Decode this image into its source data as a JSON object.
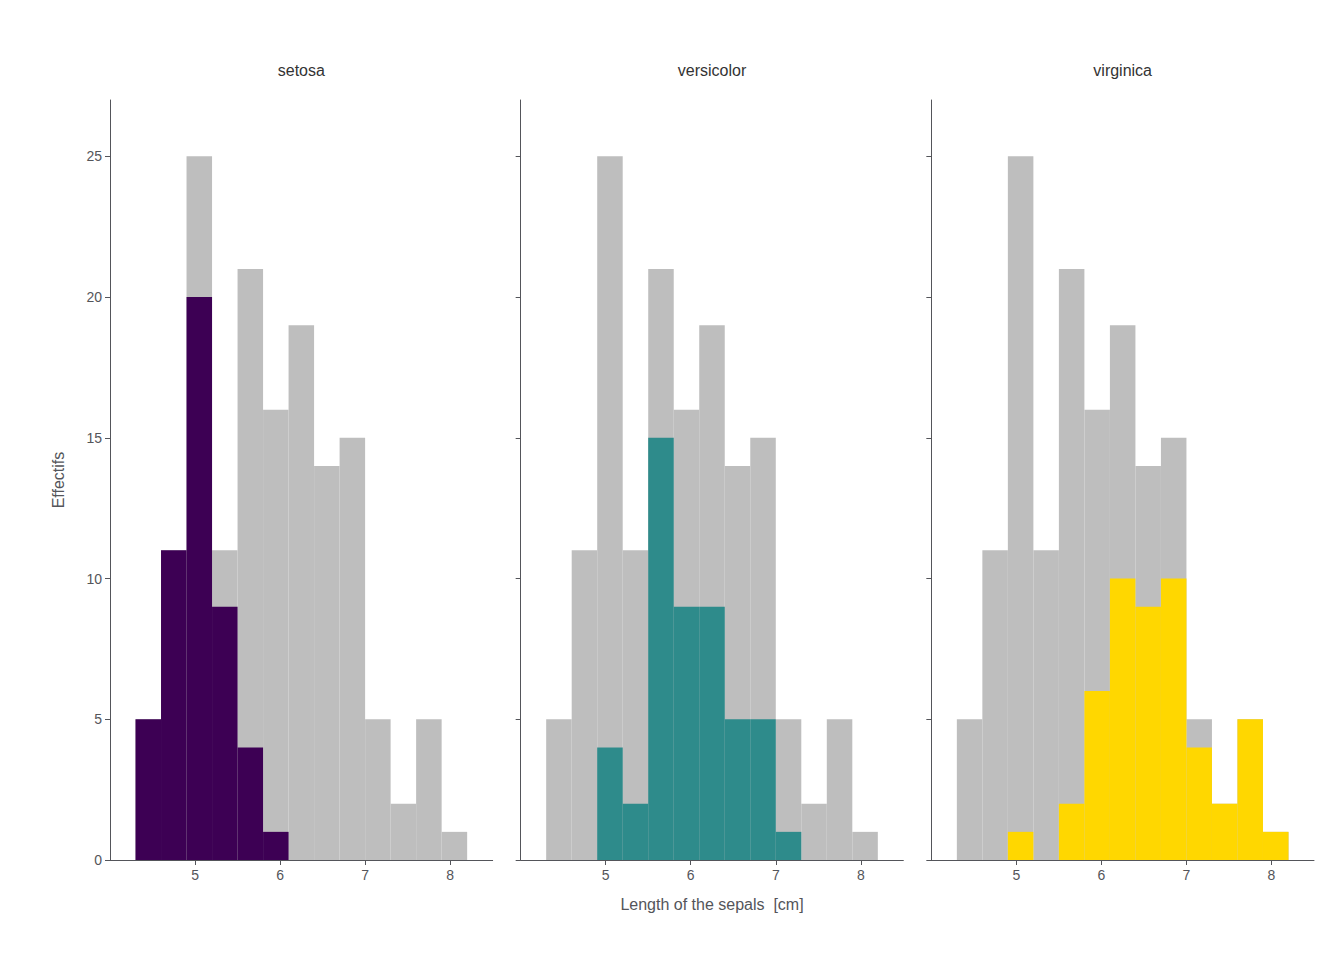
{
  "chart_data": [
    {
      "type": "histogram",
      "title": "setosa",
      "bins": [
        4.0,
        4.3,
        4.6,
        4.9,
        5.2,
        5.5,
        5.8,
        6.1,
        6.4,
        6.7,
        7.0,
        7.3,
        7.6,
        7.9,
        8.2,
        8.5
      ],
      "series": [
        {
          "color": "#BEBEBE",
          "values": [
            0,
            5,
            11,
            25,
            11,
            21,
            16,
            19,
            14,
            15,
            5,
            2,
            5,
            1,
            0
          ]
        },
        {
          "color": "#3D0054",
          "values": [
            0,
            5,
            11,
            20,
            9,
            4,
            1,
            0,
            0,
            0,
            0,
            0,
            0,
            0,
            0
          ]
        }
      ],
      "ylabel": "Effectifs",
      "xlim": [
        4.0,
        8.5
      ],
      "ylim": [
        0,
        27
      ],
      "xticks": [
        5,
        6,
        7,
        8
      ],
      "yticks": [
        0,
        5,
        10,
        15,
        20,
        25
      ],
      "grid": false
    },
    {
      "type": "histogram",
      "title": "versicolor",
      "bins": [
        4.0,
        4.3,
        4.6,
        4.9,
        5.2,
        5.5,
        5.8,
        6.1,
        6.4,
        6.7,
        7.0,
        7.3,
        7.6,
        7.9,
        8.2,
        8.5
      ],
      "series": [
        {
          "color": "#BEBEBE",
          "values": [
            0,
            5,
            11,
            25,
            11,
            21,
            16,
            19,
            14,
            15,
            5,
            2,
            5,
            1,
            0
          ]
        },
        {
          "color": "#2E8B8B",
          "values": [
            0,
            0,
            0,
            4,
            2,
            15,
            9,
            9,
            5,
            5,
            1,
            0,
            0,
            0,
            0
          ]
        }
      ],
      "xlabel": "Length of the sepals  [cm]",
      "xlim": [
        4.0,
        8.5
      ],
      "ylim": [
        0,
        27
      ],
      "xticks": [
        5,
        6,
        7,
        8
      ],
      "yticks": [
        0,
        5,
        10,
        15,
        20,
        25
      ],
      "grid": false,
      "tick_labels": "x"
    },
    {
      "type": "histogram",
      "title": "virginica",
      "bins": [
        4.0,
        4.3,
        4.6,
        4.9,
        5.2,
        5.5,
        5.8,
        6.1,
        6.4,
        6.7,
        7.0,
        7.3,
        7.6,
        7.9,
        8.2,
        8.5
      ],
      "series": [
        {
          "color": "#BEBEBE",
          "values": [
            0,
            5,
            11,
            25,
            11,
            21,
            16,
            19,
            14,
            15,
            5,
            2,
            5,
            1,
            0
          ]
        },
        {
          "color": "#FFD700",
          "values": [
            0,
            0,
            0,
            1,
            0,
            2,
            6,
            10,
            9,
            10,
            4,
            2,
            5,
            1,
            0
          ]
        }
      ],
      "xlim": [
        4.0,
        8.5
      ],
      "ylim": [
        0,
        27
      ],
      "xticks": [
        5,
        6,
        7,
        8
      ],
      "yticks": [
        0,
        5,
        10,
        15,
        20,
        25
      ],
      "grid": false,
      "tick_labels": "x"
    }
  ]
}
